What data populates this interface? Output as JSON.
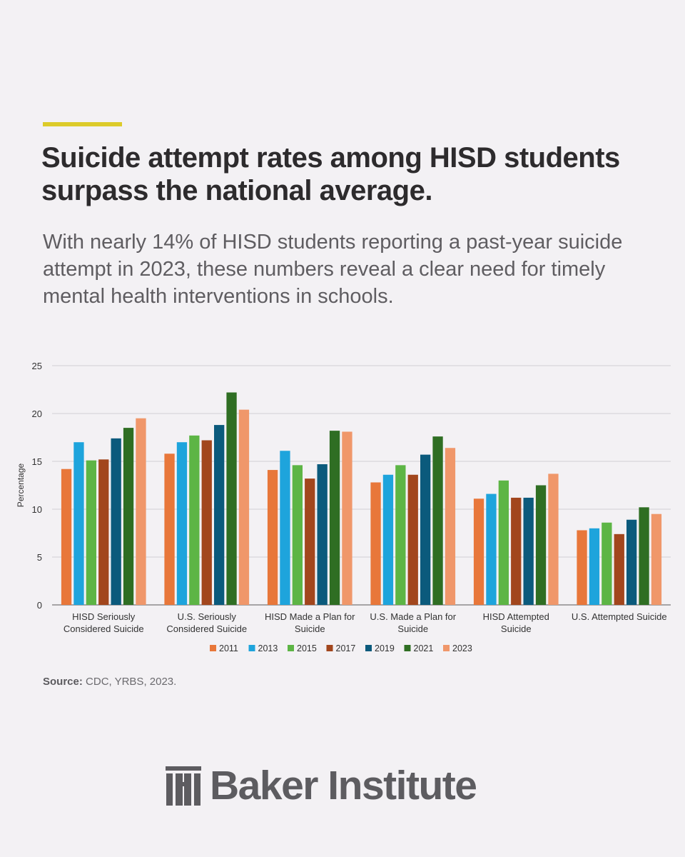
{
  "header": {
    "headline": "Suicide attempt rates among HISD students surpass the national average.",
    "subhead": "With nearly 14% of HISD students reporting a past-year suicide attempt in 2023, these numbers reveal a clear need for timely mental health interventions in schools."
  },
  "source": {
    "label": "Source:",
    "text": "CDC, YRBS, 2023."
  },
  "logo": {
    "text": "Baker Institute",
    "icon": "baker-institute-columns-icon"
  },
  "colors": {
    "background": "#f3f1f4",
    "accent_rule": "#dccb2a"
  },
  "chart_data": {
    "type": "bar",
    "title": "",
    "xlabel": "",
    "ylabel": "Percentage",
    "ylim": [
      0,
      25
    ],
    "yticks": [
      0,
      5,
      10,
      15,
      20,
      25
    ],
    "grid": true,
    "legend_position": "bottom",
    "categories": [
      [
        "HISD Seriously",
        "Considered Suicide"
      ],
      [
        "U.S. Seriously",
        "Considered Suicide"
      ],
      [
        "HISD Made a Plan for",
        "Suicide"
      ],
      [
        "U.S. Made a Plan for",
        "Suicide"
      ],
      [
        "HISD Attempted",
        "Suicide"
      ],
      [
        "U.S. Attempted Suicide"
      ]
    ],
    "series": [
      {
        "name": "2011",
        "color": "#e8773a",
        "values": [
          14.2,
          15.8,
          14.1,
          12.8,
          11.1,
          7.8
        ]
      },
      {
        "name": "2013",
        "color": "#1ea4dc",
        "values": [
          17.0,
          17.0,
          16.1,
          13.6,
          11.6,
          8.0
        ]
      },
      {
        "name": "2015",
        "color": "#5db545",
        "values": [
          15.1,
          17.7,
          14.6,
          14.6,
          13.0,
          8.6
        ]
      },
      {
        "name": "2017",
        "color": "#a2461d",
        "values": [
          15.2,
          17.2,
          13.2,
          13.6,
          11.2,
          7.4
        ]
      },
      {
        "name": "2019",
        "color": "#0b5a7c",
        "values": [
          17.4,
          18.8,
          14.7,
          15.7,
          11.2,
          8.9
        ]
      },
      {
        "name": "2021",
        "color": "#2f6e23",
        "values": [
          18.5,
          22.2,
          18.2,
          17.6,
          12.5,
          10.2
        ]
      },
      {
        "name": "2023",
        "color": "#f0976a",
        "values": [
          19.5,
          20.4,
          18.1,
          16.4,
          13.7,
          9.5
        ]
      }
    ]
  }
}
